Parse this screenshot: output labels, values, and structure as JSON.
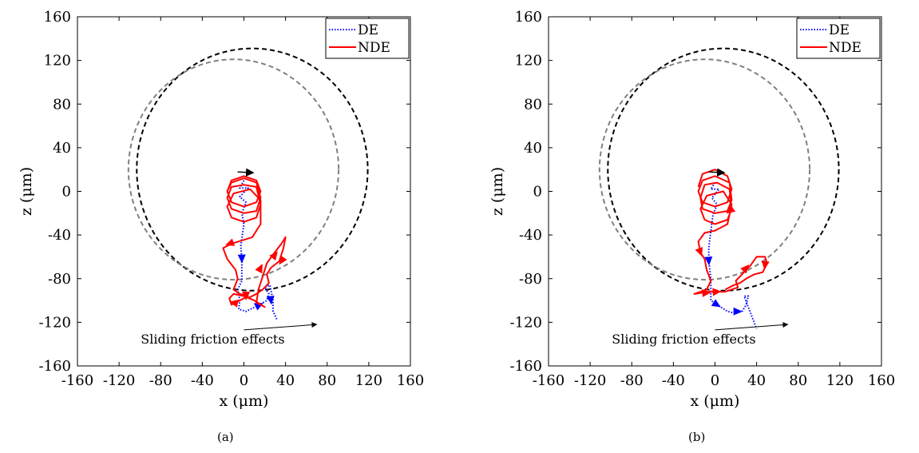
{
  "chart_data": [
    {
      "type": "line",
      "caption": "(a)",
      "xlabel": "x (μm)",
      "ylabel": "z (μm)",
      "xlim": [
        -160,
        160
      ],
      "ylim": [
        -160,
        160
      ],
      "xticks": [
        "-160",
        "-120",
        "-80",
        "-40",
        "0",
        "40",
        "80",
        "120",
        "160"
      ],
      "yticks": [
        "160",
        "120",
        "80",
        "40",
        "0",
        "-40",
        "-80",
        "-120",
        "-160"
      ],
      "legend": {
        "position": "top-right",
        "entries": [
          "DE",
          "NDE"
        ]
      },
      "annotation": {
        "text": "Sliding friction effects",
        "at": [
          -30,
          -135
        ],
        "arrow_from": [
          0,
          -127
        ],
        "arrow_to": [
          70,
          -122
        ]
      },
      "circles": [
        {
          "center": [
            8,
            20
          ],
          "radius": 111,
          "color": "#000000",
          "style": "dashed"
        },
        {
          "center": [
            -10,
            20
          ],
          "radius": 101,
          "color": "#808080",
          "style": "dashed"
        }
      ],
      "series": [
        {
          "name": "DE",
          "color": "#0000FF",
          "style": "dotted",
          "points": [
            [
              0,
              10
            ],
            [
              -4,
              3
            ],
            [
              4,
              3
            ],
            [
              -4,
              -5
            ],
            [
              2,
              -10
            ],
            [
              -2,
              -20
            ],
            [
              0,
              -30
            ],
            [
              -3,
              -50
            ],
            [
              -2,
              -62
            ],
            [
              -2,
              -82
            ],
            [
              -6,
              -90
            ],
            [
              -4,
              -100
            ],
            [
              -5,
              -108
            ],
            [
              2,
              -110
            ],
            [
              15,
              -104
            ],
            [
              22,
              -100
            ],
            [
              24,
              -94
            ],
            [
              20,
              -88
            ],
            [
              25,
              -86
            ],
            [
              28,
              -100
            ],
            [
              28,
              -110
            ],
            [
              32,
              -118
            ]
          ],
          "arrows": [
            [
              -2,
              -62
            ],
            [
              15,
              -104
            ],
            [
              26,
              -100
            ]
          ]
        },
        {
          "name": "NDE",
          "color": "#FF0000",
          "style": "solid",
          "points": [
            [
              -16,
              0
            ],
            [
              -12,
              10
            ],
            [
              0,
              14
            ],
            [
              12,
              10
            ],
            [
              16,
              0
            ],
            [
              12,
              -10
            ],
            [
              0,
              -14
            ],
            [
              -12,
              -10
            ],
            [
              -16,
              0
            ],
            [
              -12,
              8
            ],
            [
              0,
              12
            ],
            [
              12,
              8
            ],
            [
              16,
              -6
            ],
            [
              12,
              -18
            ],
            [
              0,
              -20
            ],
            [
              -12,
              -16
            ],
            [
              -16,
              -6
            ],
            [
              -12,
              4
            ],
            [
              0,
              6
            ],
            [
              12,
              4
            ],
            [
              16,
              -12
            ],
            [
              12,
              -24
            ],
            [
              0,
              -28
            ],
            [
              -12,
              -24
            ],
            [
              -16,
              -14
            ],
            [
              -10,
              -2
            ],
            [
              6,
              2
            ],
            [
              16,
              -8
            ],
            [
              16,
              -30
            ],
            [
              8,
              -42
            ],
            [
              -12,
              -48
            ],
            [
              -20,
              -52
            ],
            [
              -16,
              -62
            ],
            [
              -8,
              -72
            ],
            [
              -6,
              -80
            ],
            [
              -10,
              -90
            ],
            [
              -4,
              -94
            ],
            [
              4,
              -96
            ],
            [
              -4,
              -100
            ],
            [
              -12,
              -104
            ],
            [
              -14,
              -98
            ],
            [
              -10,
              -94
            ],
            [
              0,
              -96
            ],
            [
              10,
              -100
            ],
            [
              20,
              -106
            ],
            [
              12,
              -102
            ],
            [
              14,
              -90
            ],
            [
              18,
              -78
            ],
            [
              22,
              -66
            ],
            [
              28,
              -58
            ],
            [
              36,
              -48
            ],
            [
              40,
              -42
            ],
            [
              38,
              -52
            ],
            [
              34,
              -64
            ],
            [
              26,
              -70
            ],
            [
              22,
              -76
            ],
            [
              24,
              -84
            ],
            [
              18,
              -90
            ],
            [
              12,
              -94
            ],
            [
              4,
              -98
            ]
          ],
          "arrows": [
            [
              -14,
              -48
            ],
            [
              30,
              -58
            ],
            [
              36,
              -64
            ],
            [
              2,
              -96
            ],
            [
              16,
              -70
            ],
            [
              -10,
              -102
            ]
          ]
        }
      ]
    },
    {
      "type": "line",
      "caption": "(b)",
      "xlabel": "x (μm)",
      "ylabel": "z (μm)",
      "xlim": [
        -160,
        160
      ],
      "ylim": [
        -160,
        160
      ],
      "xticks": [
        "-160",
        "-120",
        "-80",
        "-40",
        "0",
        "40",
        "80",
        "120",
        "160"
      ],
      "yticks": [
        "160",
        "120",
        "80",
        "40",
        "0",
        "-40",
        "-80",
        "-120",
        "-160"
      ],
      "legend": {
        "position": "top-right",
        "entries": [
          "DE",
          "NDE"
        ]
      },
      "annotation": {
        "text": "Sliding friction effects",
        "at": [
          -30,
          -135
        ],
        "arrow_from": [
          0,
          -127
        ],
        "arrow_to": [
          70,
          -122
        ]
      },
      "circles": [
        {
          "center": [
            8,
            20
          ],
          "radius": 111,
          "color": "#000000",
          "style": "dashed"
        },
        {
          "center": [
            -10,
            20
          ],
          "radius": 101,
          "color": "#808080",
          "style": "dashed"
        }
      ],
      "series": [
        {
          "name": "DE",
          "color": "#0000FF",
          "style": "dotted",
          "points": [
            [
              0,
              8
            ],
            [
              -4,
              2
            ],
            [
              4,
              2
            ],
            [
              -3,
              -6
            ],
            [
              2,
              -12
            ],
            [
              -2,
              -22
            ],
            [
              -4,
              -36
            ],
            [
              -6,
              -52
            ],
            [
              -6,
              -64
            ],
            [
              -4,
              -80
            ],
            [
              -4,
              -92
            ],
            [
              -4,
              -100
            ],
            [
              2,
              -104
            ],
            [
              12,
              -110
            ],
            [
              20,
              -112
            ],
            [
              26,
              -110
            ],
            [
              30,
              -104
            ],
            [
              32,
              -96
            ],
            [
              28,
              -96
            ],
            [
              32,
              -106
            ],
            [
              36,
              -116
            ],
            [
              40,
              -126
            ]
          ],
          "arrows": [
            [
              -6,
              -64
            ],
            [
              22,
              -110
            ],
            [
              2,
              -104
            ]
          ]
        },
        {
          "name": "NDE",
          "color": "#FF0000",
          "style": "solid",
          "points": [
            [
              -16,
              4
            ],
            [
              -12,
              16
            ],
            [
              0,
              20
            ],
            [
              12,
              14
            ],
            [
              16,
              2
            ],
            [
              12,
              -10
            ],
            [
              0,
              -14
            ],
            [
              -12,
              -10
            ],
            [
              -16,
              0
            ],
            [
              -12,
              10
            ],
            [
              0,
              14
            ],
            [
              14,
              8
            ],
            [
              16,
              -8
            ],
            [
              12,
              -18
            ],
            [
              0,
              -20
            ],
            [
              -12,
              -16
            ],
            [
              -14,
              -6
            ],
            [
              -10,
              6
            ],
            [
              2,
              8
            ],
            [
              14,
              2
            ],
            [
              16,
              -16
            ],
            [
              12,
              -26
            ],
            [
              0,
              -30
            ],
            [
              -10,
              -26
            ],
            [
              -14,
              -16
            ],
            [
              -8,
              -4
            ],
            [
              8,
              0
            ],
            [
              16,
              -12
            ],
            [
              12,
              -30
            ],
            [
              0,
              -36
            ],
            [
              -10,
              -38
            ],
            [
              -16,
              -46
            ],
            [
              -14,
              -56
            ],
            [
              -10,
              -62
            ],
            [
              -8,
              -72
            ],
            [
              -4,
              -82
            ],
            [
              -8,
              -90
            ],
            [
              -20,
              -94
            ],
            [
              -6,
              -92
            ],
            [
              10,
              -92
            ],
            [
              22,
              -88
            ],
            [
              20,
              -82
            ],
            [
              26,
              -76
            ],
            [
              34,
              -68
            ],
            [
              40,
              -60
            ],
            [
              48,
              -60
            ],
            [
              50,
              -66
            ],
            [
              46,
              -74
            ],
            [
              38,
              -76
            ],
            [
              30,
              -80
            ],
            [
              24,
              -84
            ],
            [
              18,
              -86
            ],
            [
              10,
              -90
            ]
          ],
          "arrows": [
            [
              -14,
              -56
            ],
            [
              30,
              -70
            ],
            [
              48,
              -68
            ],
            [
              2,
              -92
            ],
            [
              14,
              -18
            ],
            [
              -8,
              -93
            ]
          ]
        }
      ]
    }
  ]
}
